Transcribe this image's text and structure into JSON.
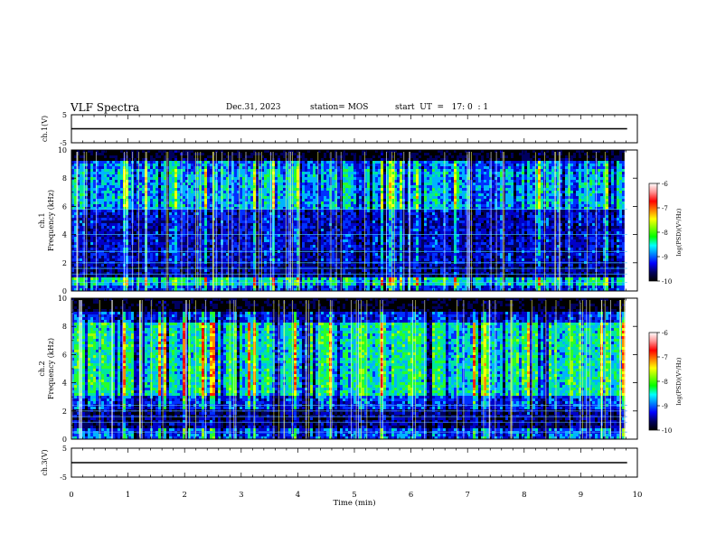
{
  "header": {
    "title": "VLF Spectra",
    "date": "Dec.31, 2023",
    "station": "station= MOS",
    "start_ut": "start  UT  =   17: 0  : 1"
  },
  "colors": {
    "colormap": [
      "#000000",
      "#000060",
      "#0000c8",
      "#0030ff",
      "#00b4ff",
      "#00e6a0",
      "#28ff28",
      "#a0ff00",
      "#ffff00",
      "#ff8c00",
      "#ff2000",
      "#e00000",
      "#ff8080",
      "#ffffff"
    ]
  },
  "chart_data": [
    {
      "type": "line",
      "panel": "ch.1 voltage",
      "ylabel": "ch.1(V)",
      "ylim": [
        -5,
        5
      ],
      "yticks": [
        "5",
        "-5"
      ],
      "xlim": [
        0,
        10
      ],
      "series": [
        {
          "x": [
            0,
            9.82
          ],
          "y": [
            0,
            0
          ]
        }
      ]
    },
    {
      "type": "heatmap",
      "panel": "ch.1 spectrogram",
      "ylabel": "ch.1\nFrequency (kHz)",
      "xlim": [
        0,
        10
      ],
      "ylim": [
        0,
        10
      ],
      "yticks": [
        "0",
        "2",
        "4",
        "6",
        "8",
        "10"
      ],
      "data_extent_x": [
        0,
        9.82
      ],
      "colorbar": {
        "label": "log(PSD)(V²/Hz)",
        "range": [
          -10,
          -6
        ],
        "ticks": [
          "-10",
          "-9",
          "-8",
          "-7",
          "-6"
        ]
      }
    },
    {
      "type": "heatmap",
      "panel": "ch.2 spectrogram",
      "ylabel": "ch.2\nFrequency (kHz)",
      "xlim": [
        0,
        10
      ],
      "ylim": [
        0,
        10
      ],
      "yticks": [
        "0",
        "2",
        "4",
        "6",
        "8",
        "10"
      ],
      "data_extent_x": [
        0,
        9.82
      ],
      "colorbar": {
        "label": "log(PSD)(V²/Hz)",
        "range": [
          -10,
          -6
        ],
        "ticks": [
          "-10",
          "-9",
          "-8",
          "-7",
          "-6"
        ]
      }
    },
    {
      "type": "line",
      "panel": "ch.3 voltage",
      "ylabel": "ch.3(V)",
      "ylim": [
        -5,
        5
      ],
      "yticks": [
        "5",
        "-5"
      ],
      "xlim": [
        0,
        10
      ],
      "series": [
        {
          "x": [
            0,
            9.82
          ],
          "y": [
            0,
            0
          ]
        }
      ]
    }
  ],
  "xaxis": {
    "label": "Time  (min)",
    "ticks": [
      "0",
      "1",
      "2",
      "3",
      "4",
      "5",
      "6",
      "7",
      "8",
      "9",
      "10"
    ]
  }
}
